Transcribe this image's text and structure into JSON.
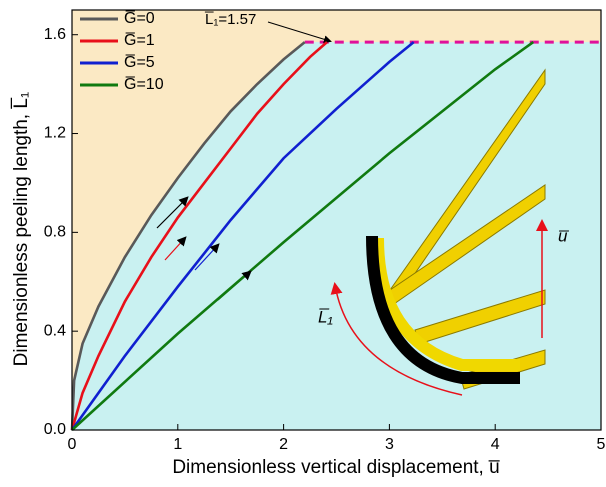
{
  "chart_data": {
    "type": "line",
    "xlabel": "Dimensionless vertical displacement, u̅",
    "ylabel": "Dimensionless peeling length, L̅₁",
    "annotation": "L̅₁=1.57",
    "hline": 1.57,
    "hline_color": "#e0109a",
    "inset_labels": [
      "L̅₁",
      "u̅"
    ],
    "xlim": [
      0,
      5
    ],
    "ylim": [
      0,
      1.7
    ],
    "xticks": [
      0,
      1,
      2,
      3,
      4,
      5
    ],
    "yticks": [
      {
        "value": 0,
        "label": "0.0"
      },
      0.4,
      0.8,
      1.2,
      1.6
    ],
    "legend": "top-left",
    "series": [
      {
        "name": "G̅=0",
        "color": "#595959",
        "x": [
          0,
          0.02,
          0.1,
          0.25,
          0.5,
          0.75,
          1.0,
          1.25,
          1.5,
          1.75,
          2.0,
          2.2
        ],
        "values": [
          0,
          0.2,
          0.35,
          0.5,
          0.7,
          0.87,
          1.02,
          1.16,
          1.29,
          1.4,
          1.5,
          1.57
        ]
      },
      {
        "name": "G̅=1",
        "color": "#e8101a",
        "x": [
          0,
          0.1,
          0.25,
          0.5,
          0.75,
          1.0,
          1.25,
          1.5,
          1.75,
          2.0,
          2.25,
          2.41
        ],
        "values": [
          0,
          0.15,
          0.3,
          0.52,
          0.7,
          0.86,
          1.0,
          1.14,
          1.28,
          1.4,
          1.51,
          1.57
        ]
      },
      {
        "name": "G̅=5",
        "color": "#1020d0",
        "x": [
          0,
          0.5,
          1.0,
          1.5,
          2.0,
          2.5,
          3.0,
          3.23
        ],
        "values": [
          0,
          0.3,
          0.58,
          0.85,
          1.1,
          1.3,
          1.49,
          1.57
        ]
      },
      {
        "name": "G̅=10",
        "color": "#107a10",
        "x": [
          0,
          1,
          2,
          3,
          4,
          4.36
        ],
        "values": [
          0,
          0.39,
          0.76,
          1.12,
          1.46,
          1.57
        ]
      }
    ]
  }
}
